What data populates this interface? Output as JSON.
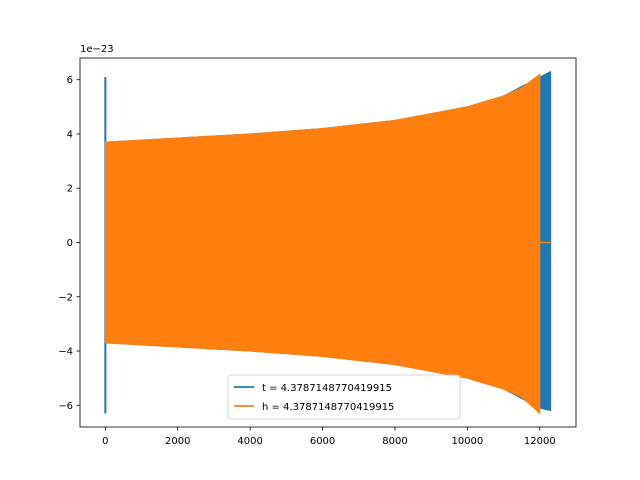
{
  "chart_data": {
    "type": "line",
    "title": "",
    "xlabel": "",
    "ylabel": "",
    "offset_text": "1e−23",
    "xlim": [
      -700,
      13000
    ],
    "ylim": [
      -6.8,
      6.8
    ],
    "xticks": [
      0,
      2000,
      4000,
      6000,
      8000,
      10000,
      12000
    ],
    "xtick_labels": [
      "0",
      "2000",
      "4000",
      "6000",
      "8000",
      "10000",
      "12000"
    ],
    "yticks": [
      -6,
      -4,
      -2,
      0,
      2,
      4,
      6
    ],
    "ytick_labels": [
      "−6",
      "−4",
      "−2",
      "0",
      "2",
      "4",
      "6"
    ],
    "grid": false,
    "legend_position": "bottom-center",
    "series": [
      {
        "name": "t = 4.3787148770419915",
        "color": "#1f77b4",
        "shape": "oscillation envelope",
        "spike": {
          "x": 0,
          "upper": 6.1,
          "lower": -6.3
        },
        "envelope_x": [
          0,
          2000,
          4000,
          6000,
          8000,
          10000,
          11000,
          12000,
          12300
        ],
        "envelope_upper": [
          3.7,
          3.85,
          4.0,
          4.2,
          4.5,
          5.0,
          5.4,
          6.1,
          6.3
        ],
        "envelope_lower": [
          -3.7,
          -3.85,
          -4.0,
          -4.2,
          -4.5,
          -5.0,
          -5.4,
          -6.1,
          -6.2
        ]
      },
      {
        "name": "h = 4.3787148770419915",
        "color": "#ff7f0e",
        "shape": "oscillation envelope",
        "envelope_x": [
          0,
          2000,
          4000,
          6000,
          8000,
          10000,
          11000,
          11500,
          12000
        ],
        "envelope_upper": [
          3.7,
          3.85,
          4.0,
          4.2,
          4.5,
          5.0,
          5.4,
          5.7,
          6.2
        ],
        "envelope_lower": [
          -3.7,
          -3.85,
          -4.0,
          -4.2,
          -4.5,
          -5.0,
          -5.4,
          -5.7,
          -6.3
        ],
        "tail_x": [
          12000,
          12300
        ],
        "tail_y": 0
      }
    ]
  }
}
